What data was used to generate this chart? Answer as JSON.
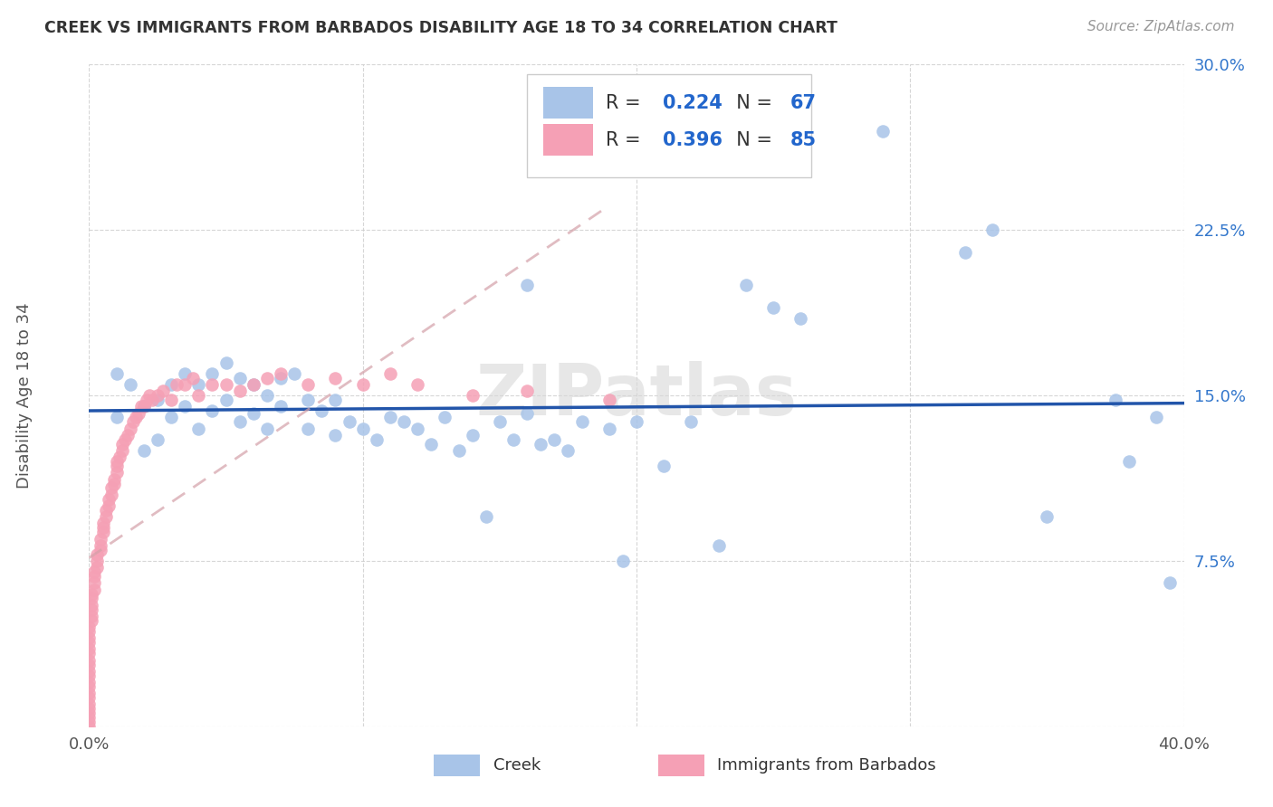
{
  "title": "CREEK VS IMMIGRANTS FROM BARBADOS DISABILITY AGE 18 TO 34 CORRELATION CHART",
  "source": "Source: ZipAtlas.com",
  "ylabel": "Disability Age 18 to 34",
  "xlim": [
    0.0,
    0.4
  ],
  "ylim": [
    0.0,
    0.3
  ],
  "xticks": [
    0.0,
    0.1,
    0.2,
    0.3,
    0.4
  ],
  "xticklabels": [
    "0.0%",
    "",
    "",
    "",
    "40.0%"
  ],
  "yticks": [
    0.0,
    0.075,
    0.15,
    0.225,
    0.3
  ],
  "yticklabels": [
    "",
    "7.5%",
    "15.0%",
    "22.5%",
    "30.0%"
  ],
  "watermark": "ZIPatlas",
  "creek_color": "#a8c4e8",
  "barbados_color": "#f5a0b5",
  "creek_R": 0.224,
  "creek_N": 67,
  "barbados_R": 0.396,
  "barbados_N": 85,
  "creek_line_color": "#2255aa",
  "barbados_line_color": "#d4a0a8",
  "creek_points_x": [
    0.01,
    0.01,
    0.015,
    0.02,
    0.02,
    0.025,
    0.025,
    0.03,
    0.03,
    0.035,
    0.035,
    0.04,
    0.04,
    0.045,
    0.045,
    0.05,
    0.05,
    0.055,
    0.055,
    0.06,
    0.06,
    0.065,
    0.065,
    0.07,
    0.07,
    0.075,
    0.08,
    0.08,
    0.085,
    0.09,
    0.09,
    0.095,
    0.1,
    0.105,
    0.11,
    0.115,
    0.12,
    0.125,
    0.13,
    0.135,
    0.14,
    0.145,
    0.15,
    0.155,
    0.16,
    0.165,
    0.17,
    0.175,
    0.18,
    0.19,
    0.195,
    0.2,
    0.21,
    0.22,
    0.23,
    0.24,
    0.25,
    0.26,
    0.29,
    0.32,
    0.33,
    0.35,
    0.375,
    0.38,
    0.39,
    0.395,
    0.16
  ],
  "creek_points_y": [
    0.16,
    0.14,
    0.155,
    0.145,
    0.125,
    0.148,
    0.13,
    0.155,
    0.14,
    0.16,
    0.145,
    0.155,
    0.135,
    0.16,
    0.143,
    0.165,
    0.148,
    0.158,
    0.138,
    0.155,
    0.142,
    0.15,
    0.135,
    0.158,
    0.145,
    0.16,
    0.148,
    0.135,
    0.143,
    0.148,
    0.132,
    0.138,
    0.135,
    0.13,
    0.14,
    0.138,
    0.135,
    0.128,
    0.14,
    0.125,
    0.132,
    0.095,
    0.138,
    0.13,
    0.142,
    0.128,
    0.13,
    0.125,
    0.138,
    0.135,
    0.075,
    0.138,
    0.118,
    0.138,
    0.082,
    0.2,
    0.19,
    0.185,
    0.27,
    0.215,
    0.225,
    0.095,
    0.148,
    0.12,
    0.14,
    0.065,
    0.2
  ],
  "barbados_points_x": [
    0.0,
    0.0,
    0.0,
    0.0,
    0.0,
    0.0,
    0.0,
    0.0,
    0.0,
    0.0,
    0.0,
    0.0,
    0.0,
    0.0,
    0.0,
    0.0,
    0.0,
    0.0,
    0.0,
    0.0,
    0.001,
    0.001,
    0.001,
    0.001,
    0.001,
    0.001,
    0.002,
    0.002,
    0.002,
    0.002,
    0.003,
    0.003,
    0.003,
    0.004,
    0.004,
    0.004,
    0.005,
    0.005,
    0.005,
    0.006,
    0.006,
    0.007,
    0.007,
    0.008,
    0.008,
    0.009,
    0.009,
    0.01,
    0.01,
    0.01,
    0.011,
    0.012,
    0.012,
    0.013,
    0.014,
    0.015,
    0.016,
    0.017,
    0.018,
    0.019,
    0.02,
    0.021,
    0.022,
    0.023,
    0.025,
    0.027,
    0.03,
    0.032,
    0.035,
    0.038,
    0.04,
    0.045,
    0.05,
    0.055,
    0.06,
    0.065,
    0.07,
    0.08,
    0.09,
    0.1,
    0.11,
    0.12,
    0.14,
    0.16,
    0.19
  ],
  "barbados_points_y": [
    0.0,
    0.002,
    0.004,
    0.006,
    0.008,
    0.01,
    0.013,
    0.015,
    0.018,
    0.02,
    0.023,
    0.025,
    0.028,
    0.03,
    0.033,
    0.035,
    0.038,
    0.04,
    0.043,
    0.045,
    0.048,
    0.05,
    0.053,
    0.055,
    0.058,
    0.06,
    0.062,
    0.065,
    0.068,
    0.07,
    0.072,
    0.075,
    0.078,
    0.08,
    0.082,
    0.085,
    0.088,
    0.09,
    0.092,
    0.095,
    0.098,
    0.1,
    0.103,
    0.105,
    0.108,
    0.11,
    0.112,
    0.115,
    0.118,
    0.12,
    0.122,
    0.125,
    0.128,
    0.13,
    0.132,
    0.135,
    0.138,
    0.14,
    0.142,
    0.145,
    0.145,
    0.148,
    0.15,
    0.148,
    0.15,
    0.152,
    0.148,
    0.155,
    0.155,
    0.158,
    0.15,
    0.155,
    0.155,
    0.152,
    0.155,
    0.158,
    0.16,
    0.155,
    0.158,
    0.155,
    0.16,
    0.155,
    0.15,
    0.152,
    0.148
  ]
}
